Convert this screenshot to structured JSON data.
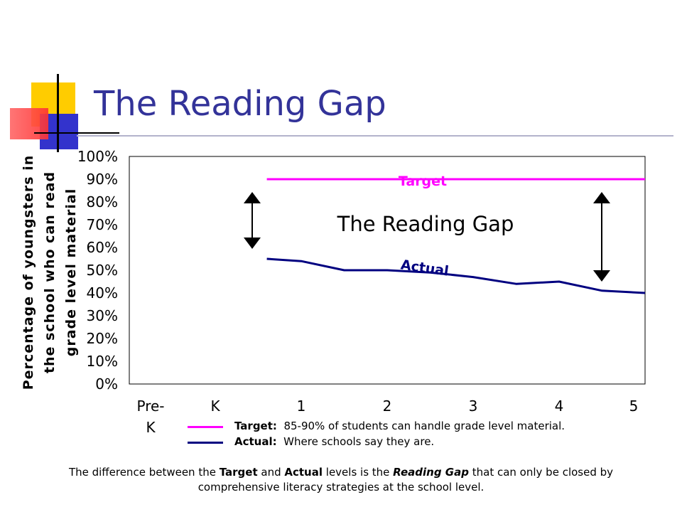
{
  "slide": {
    "title": "The Reading Gap"
  },
  "colors": {
    "title": "#333399",
    "target": "#ff00ff",
    "actual": "#000080",
    "deco_yellow": "#ffcc00",
    "deco_blue": "#3333cc",
    "deco_red": "#ff3333"
  },
  "chart_data": {
    "type": "line",
    "categories": [
      "Pre-K",
      "K",
      "1",
      "2",
      "3",
      "4",
      "5"
    ],
    "x": [
      0.6,
      1,
      1.5,
      2,
      2.5,
      3,
      3.5,
      4,
      4.5,
      5
    ],
    "series": [
      {
        "name": "Target",
        "values": [
          90,
          90,
          90,
          90,
          90,
          90,
          90,
          90,
          90,
          90
        ]
      },
      {
        "name": "Actual",
        "values": [
          55,
          54,
          50,
          50,
          49,
          47,
          44,
          45,
          41,
          40
        ]
      }
    ],
    "ylabel": "Percentage of youngsters in the school who can read grade level material",
    "yticks": [
      "0%",
      "10%",
      "20%",
      "30%",
      "40%",
      "50%",
      "60%",
      "70%",
      "80%",
      "90%",
      "100%"
    ],
    "ylim": [
      0,
      100
    ],
    "annotation": "The Reading Gap",
    "series_labels": {
      "target": "Target",
      "actual": "Actual"
    },
    "grid": false
  },
  "legend": {
    "items": [
      {
        "label": "Target:",
        "text": "85-90% of students can handle grade level material."
      },
      {
        "label": "Actual:",
        "text": "Where schools say they are."
      }
    ]
  },
  "caption": {
    "p1": "The difference between the ",
    "b1": "Target",
    "p2": " and ",
    "b2": "Actual",
    "p3": " levels is the ",
    "i1": "Reading Gap",
    "p4": " that can only be closed by comprehensive literacy strategies at the school level."
  }
}
